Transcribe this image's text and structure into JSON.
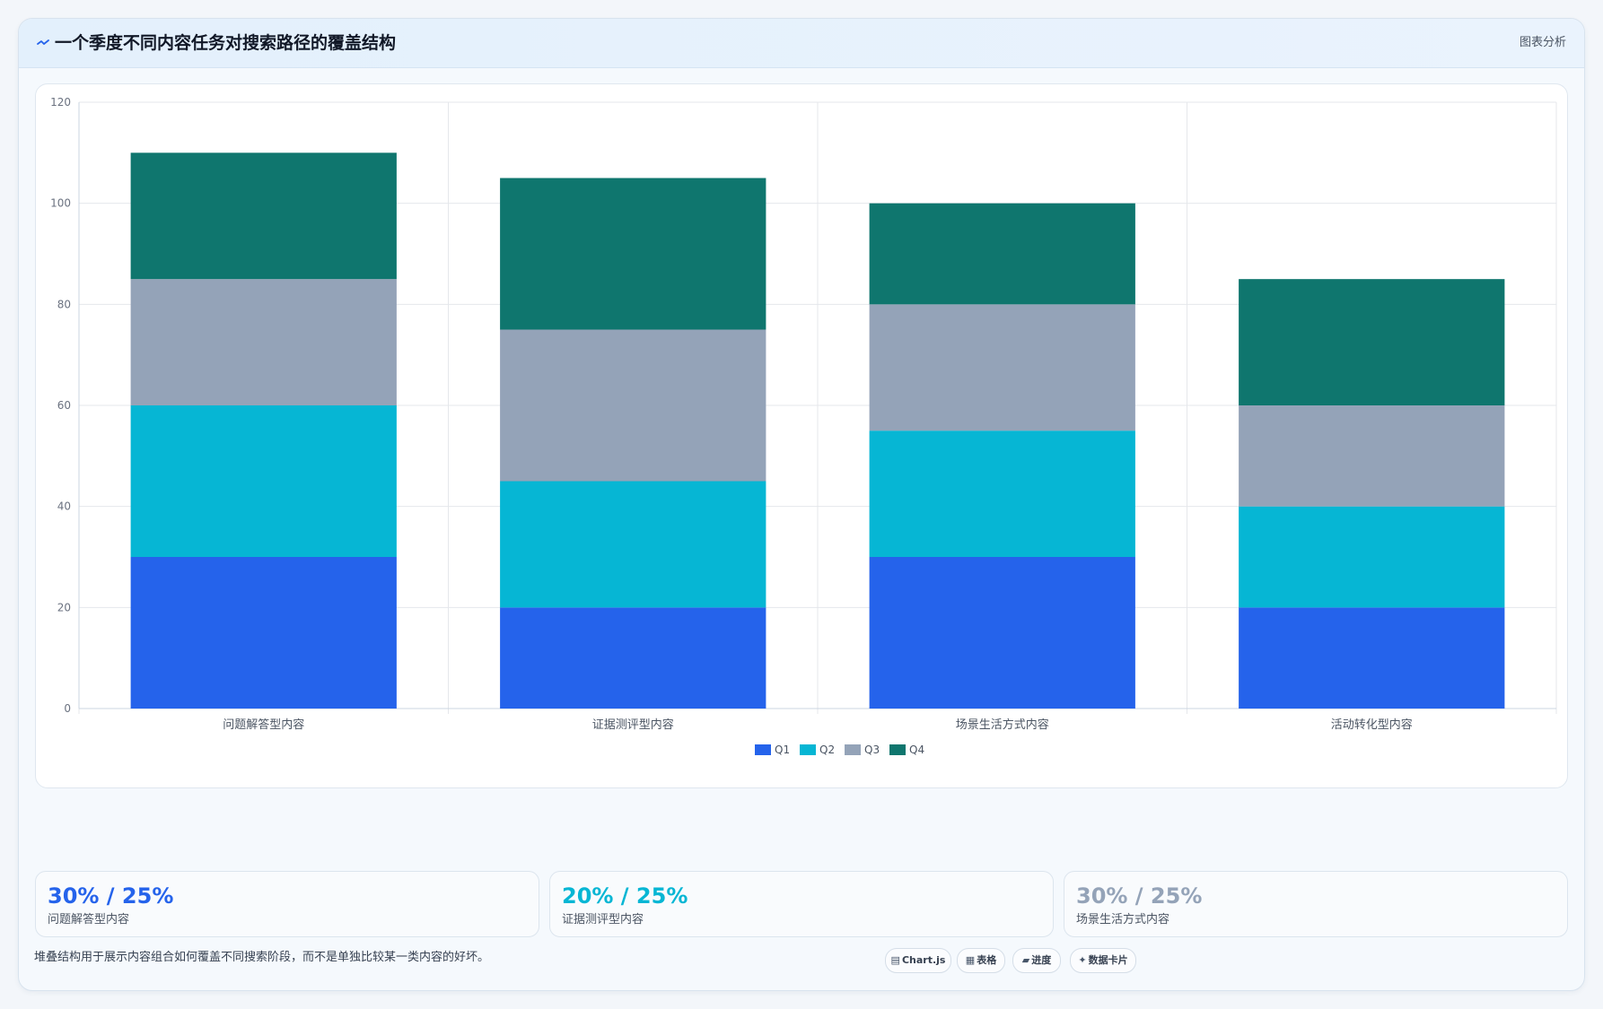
{
  "header": {
    "title_icon": "chart-trend-icon",
    "title": "一个季度不同内容任务对搜索路径的覆盖结构",
    "action": "图表分析"
  },
  "chart_data": {
    "type": "bar",
    "stacked": true,
    "title": "",
    "xlabel": "",
    "ylabel": "",
    "categories": [
      "问题解答型内容",
      "证据测评型内容",
      "场景生活方式内容",
      "活动转化型内容"
    ],
    "series": [
      {
        "name": "Q1",
        "color": "#2563eb",
        "values": [
          30,
          20,
          30,
          20
        ]
      },
      {
        "name": "Q2",
        "color": "#06b6d4",
        "values": [
          30,
          25,
          25,
          20
        ]
      },
      {
        "name": "Q3",
        "color": "#94a3b8",
        "values": [
          25,
          30,
          25,
          20
        ]
      },
      {
        "name": "Q4",
        "color": "#0f766e",
        "values": [
          25,
          30,
          20,
          25
        ]
      }
    ],
    "ylim": [
      0,
      120
    ],
    "yticks": [
      "0",
      "20",
      "40",
      "60",
      "80",
      "100",
      "120"
    ],
    "grid": true,
    "legend_position": "bottom"
  },
  "stats": [
    {
      "value": "30% / 25%",
      "label": "问题解答型内容",
      "color": "#2563eb"
    },
    {
      "value": "20% / 25%",
      "label": "证据测评型内容",
      "color": "#06b6d4"
    },
    {
      "value": "30% / 25%",
      "label": "场景生活方式内容",
      "color": "#94a3b8"
    }
  ],
  "footnote": "堆叠结构用于展示内容组合如何覆盖不同搜索阶段，而不是单独比较某一类内容的好坏。",
  "tags": [
    {
      "glyph": "▤",
      "label": "Chart.js",
      "icon": "chart-icon"
    },
    {
      "glyph": "▦",
      "label": "表格",
      "icon": "table-icon"
    },
    {
      "glyph": "▰",
      "label": "进度",
      "icon": "progress-icon"
    },
    {
      "glyph": "✦",
      "label": "数据卡片",
      "icon": "data-card-icon"
    }
  ]
}
